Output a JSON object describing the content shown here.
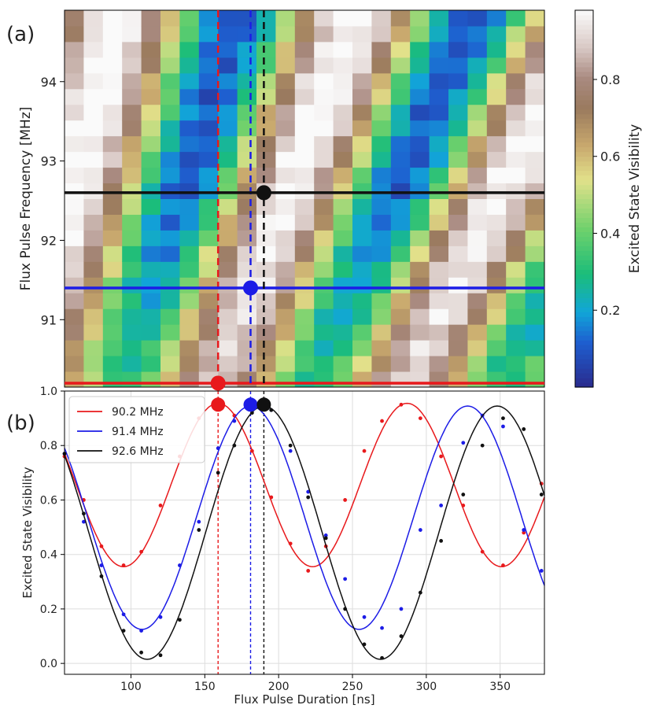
{
  "chart_data": [
    {
      "type": "heatmap",
      "panel_label": "(a)",
      "xlim": [
        55,
        380
      ],
      "ylim": [
        90.15,
        94.9
      ],
      "ylabel": "Flux Pulse Frequency [MHz]",
      "yticks": [
        91,
        92,
        93,
        94
      ],
      "colorbar": {
        "label": "Excited State Visibility",
        "range": [
          0.0,
          0.98
        ],
        "ticks": [
          0.2,
          0.4,
          0.6,
          0.8
        ],
        "colormap": "gist_earth_r"
      },
      "grid_cols": 25,
      "grid_rows": 24,
      "model": {
        "description": "Visibility oscillation vs pulse duration; period grows with frequency",
        "base_frequency_mhz": 90.2,
        "base_period_ns": 128
      },
      "cuts": [
        {
          "frequency": 90.2,
          "duration": 159,
          "color": "#e8191c"
        },
        {
          "frequency": 91.4,
          "duration": 181,
          "color": "#1c1ce6"
        },
        {
          "frequency": 92.6,
          "duration": 190,
          "color": "#111111"
        }
      ]
    },
    {
      "type": "line",
      "panel_label": "(b)",
      "xlabel": "Flux Pulse Duration [ns]",
      "ylabel": "Excited State Visibility",
      "xlim": [
        55,
        380
      ],
      "ylim": [
        -0.04,
        1.0
      ],
      "xticks": [
        100,
        150,
        200,
        250,
        300,
        350
      ],
      "yticks": [
        0.0,
        0.2,
        0.4,
        0.6,
        0.8,
        1.0
      ],
      "grid": true,
      "legend_position": "top-left",
      "x": [
        55,
        68,
        80,
        95,
        107,
        120,
        133,
        146,
        159,
        170,
        182,
        195,
        208,
        220,
        232,
        245,
        258,
        270,
        283,
        296,
        310,
        325,
        338,
        352,
        366,
        378
      ],
      "series": [
        {
          "name": "90.2 MHz",
          "color": "#e8191c",
          "fit": {
            "offset": 0.655,
            "amplitude": 0.3,
            "period": 128,
            "peak_at": 159
          },
          "values": [
            0.76,
            0.6,
            0.43,
            0.36,
            0.41,
            0.58,
            0.76,
            0.9,
            0.95,
            0.91,
            0.78,
            0.61,
            0.44,
            0.34,
            0.43,
            0.6,
            0.78,
            0.89,
            0.95,
            0.9,
            0.76,
            0.58,
            0.41,
            0.36,
            0.48,
            0.66
          ]
        },
        {
          "name": "91.4 MHz",
          "color": "#1c1ce6",
          "fit": {
            "offset": 0.535,
            "amplitude": 0.41,
            "period": 147,
            "peak_at": 181
          },
          "values": [
            0.77,
            0.52,
            0.36,
            0.18,
            0.12,
            0.17,
            0.36,
            0.52,
            0.79,
            0.89,
            0.95,
            0.93,
            0.78,
            0.63,
            0.47,
            0.31,
            0.17,
            0.13,
            0.2,
            0.49,
            0.58,
            0.81,
            0.91,
            0.87,
            0.49,
            0.34
          ]
        },
        {
          "name": "92.6 MHz",
          "color": "#111111",
          "fit": {
            "offset": 0.48,
            "amplitude": 0.465,
            "period": 158,
            "peak_at": 190
          },
          "values": [
            0.77,
            0.55,
            0.32,
            0.12,
            0.04,
            0.03,
            0.16,
            0.49,
            0.7,
            0.8,
            0.92,
            0.93,
            0.8,
            0.61,
            0.46,
            0.2,
            0.07,
            0.02,
            0.1,
            0.26,
            0.45,
            0.62,
            0.8,
            0.9,
            0.86,
            0.62
          ]
        }
      ],
      "markers": [
        {
          "x": 159,
          "y": 0.95,
          "color": "#e8191c"
        },
        {
          "x": 181,
          "y": 0.95,
          "color": "#1c1ce6"
        },
        {
          "x": 190,
          "y": 0.95,
          "color": "#111111"
        }
      ]
    }
  ]
}
